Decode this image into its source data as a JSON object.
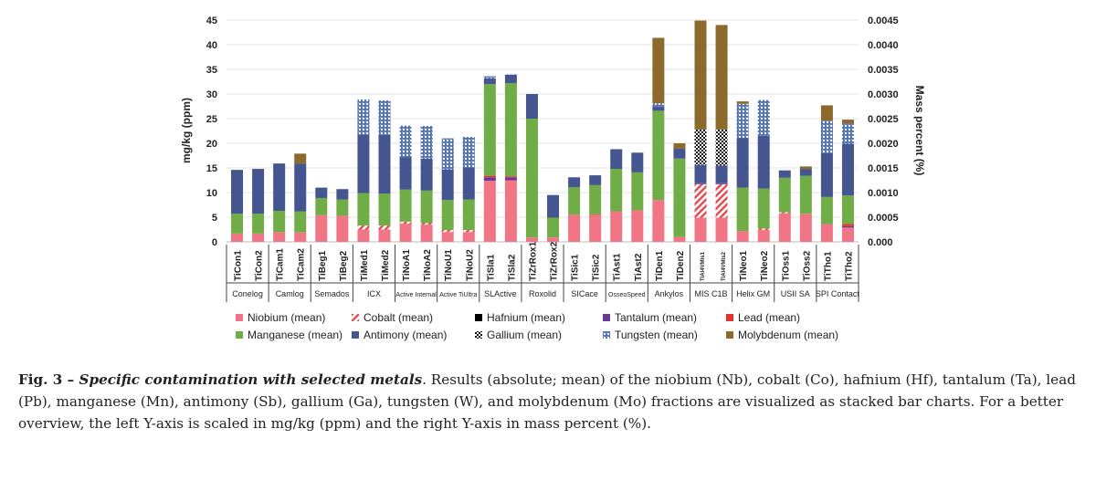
{
  "chart_data": {
    "type": "bar",
    "stacked": true,
    "ylabel": "mg/kg (ppm)",
    "y2label": "Mass percent (%)",
    "ylim": [
      0,
      45
    ],
    "y2lim": [
      0,
      0.0045
    ],
    "yticks": [
      "0",
      "5",
      "10",
      "15",
      "20",
      "25",
      "30",
      "35",
      "40",
      "45"
    ],
    "y2ticks": [
      "0.000",
      "0.0005",
      "0.0010",
      "0.0015",
      "0.0020",
      "0.0025",
      "0.0030",
      "0.0035",
      "0.0040",
      "0.0045"
    ],
    "grid": true,
    "legend_position": "bottom",
    "categories": [
      "TiCon1",
      "TiCon2",
      "TiCam1",
      "TiCam2",
      "TiBeg1",
      "TiBeg2",
      "TiMed1",
      "TiMed2",
      "TiNoA1",
      "TiNoA2",
      "TiNoU1",
      "TiNoU2",
      "TiSla1",
      "TiSla2",
      "TiZrRox1",
      "TiZrRox2",
      "TiSic1",
      "TiSic2",
      "TiAst1",
      "TiAst2",
      "TiDen1",
      "TiDen2",
      "TiAl4VMis1",
      "TiAl4VMis2",
      "TiNeo1",
      "TiNeo2",
      "TiOss1",
      "TiOss2",
      "TiTho1",
      "TiTho2"
    ],
    "groups": [
      {
        "name": "Conelog",
        "size": 2
      },
      {
        "name": "Camlog",
        "size": 2
      },
      {
        "name": "Semados",
        "size": 2
      },
      {
        "name": "ICX",
        "size": 2
      },
      {
        "name": "Active Internal",
        "size": 2
      },
      {
        "name": "Active TiUltra",
        "size": 2
      },
      {
        "name": "SLActive",
        "size": 2
      },
      {
        "name": "Roxolid",
        "size": 2
      },
      {
        "name": "SICace",
        "size": 2
      },
      {
        "name": "OsseoSpeed",
        "size": 2
      },
      {
        "name": "Ankylos",
        "size": 2
      },
      {
        "name": "MIS C1B",
        "size": 2
      },
      {
        "name": "Helix GM",
        "size": 2
      },
      {
        "name": "USII SA",
        "size": 2
      },
      {
        "name": "SPI Contact",
        "size": 2
      }
    ],
    "series": [
      {
        "name": "Niobium (mean)",
        "color": "#f07585",
        "pattern": "solid",
        "values": [
          1.7,
          1.7,
          2.0,
          1.9,
          5.4,
          5.3,
          2.5,
          2.5,
          3.7,
          3.5,
          2.0,
          2.0,
          12.4,
          12.5,
          0.9,
          0.9,
          5.5,
          5.5,
          6.2,
          6.4,
          8.5,
          1.0,
          4.9,
          4.9,
          2.2,
          2.4,
          5.8,
          5.7,
          3.6,
          2.9
        ]
      },
      {
        "name": "Cobalt (mean)",
        "color": "#e8474f",
        "pattern": "stripes",
        "values": [
          0,
          0,
          0,
          0,
          0,
          0,
          0.8,
          0.8,
          0.4,
          0.3,
          0.4,
          0.4,
          0,
          0,
          0,
          0,
          0,
          0,
          0,
          0,
          0,
          0,
          6.8,
          6.8,
          0,
          0.3,
          0.2,
          0,
          0,
          0
        ]
      },
      {
        "name": "Hafnium (mean)",
        "color": "#000000",
        "pattern": "solid",
        "values": [
          0,
          0,
          0,
          0,
          0,
          0,
          0,
          0,
          0,
          0,
          0,
          0,
          0,
          0,
          0,
          0,
          0,
          0,
          0,
          0,
          0,
          0,
          0,
          0,
          0,
          0,
          0,
          0,
          0,
          0
        ]
      },
      {
        "name": "Tantalum (mean)",
        "color": "#6b3a96",
        "pattern": "solid",
        "values": [
          0,
          0,
          0,
          0,
          0,
          0,
          0,
          0,
          0,
          0,
          0,
          0,
          0.7,
          0.6,
          0,
          0,
          0,
          0,
          0,
          0,
          0,
          0,
          0.2,
          0.2,
          0,
          0,
          0,
          0,
          0,
          0.3
        ]
      },
      {
        "name": "Lead (mean)",
        "color": "#e8302f",
        "pattern": "solid",
        "values": [
          0,
          0,
          0,
          0,
          0,
          0,
          0,
          0,
          0,
          0,
          0,
          0,
          0.3,
          0.2,
          0,
          0,
          0,
          0.1,
          0,
          0,
          0,
          0,
          0,
          0,
          0,
          0,
          0,
          0,
          0,
          0.4
        ]
      },
      {
        "name": "Manganese (mean)",
        "color": "#70ad47",
        "pattern": "solid",
        "values": [
          4.0,
          4.0,
          4.3,
          4.3,
          3.5,
          3.3,
          6.6,
          6.5,
          6.5,
          6.6,
          6.1,
          6.2,
          18.6,
          18.9,
          24.1,
          4.0,
          5.6,
          5.9,
          8.6,
          7.7,
          18.1,
          15.9,
          0,
          0,
          8.8,
          8.1,
          7.0,
          7.7,
          5.5,
          5.8
        ]
      },
      {
        "name": "Antimony (mean)",
        "color": "#44558f",
        "pattern": "solid",
        "values": [
          8.9,
          9.1,
          9.6,
          9.7,
          2.1,
          2.1,
          11.9,
          11.9,
          6.6,
          6.5,
          6.2,
          6.4,
          1.2,
          1.7,
          5.0,
          4.6,
          2.0,
          2.0,
          4.0,
          4.0,
          0.8,
          2.0,
          3.7,
          3.6,
          10.1,
          10.7,
          1.5,
          1.4,
          8.9,
          10.5
        ]
      },
      {
        "name": "Gallium (mean)",
        "color": "#000000",
        "pattern": "checker",
        "values": [
          0,
          0,
          0,
          0,
          0,
          0,
          0,
          0,
          0,
          0,
          0,
          0,
          0,
          0,
          0,
          0,
          0,
          0,
          0,
          0,
          0,
          0,
          7.2,
          7.3,
          0,
          0,
          0,
          0,
          0,
          0
        ]
      },
      {
        "name": "Tungsten (mean)",
        "color": "#4a6bb5",
        "pattern": "dots",
        "values": [
          0,
          0,
          0,
          0,
          0,
          0,
          7.1,
          7.0,
          6.4,
          6.6,
          6.3,
          6.3,
          0.4,
          0.1,
          0,
          0,
          0,
          0,
          0,
          0,
          0.7,
          0,
          0,
          0,
          6.9,
          7.3,
          0,
          0,
          6.6,
          4.1
        ]
      },
      {
        "name": "Molybdenum (mean)",
        "color": "#8b6a2c",
        "pattern": "solid",
        "values": [
          0,
          0,
          0,
          2.0,
          0,
          0,
          0,
          0,
          0,
          0,
          0,
          0,
          0,
          0,
          0,
          0,
          0,
          0,
          0,
          0,
          13.3,
          1.1,
          22.1,
          21.2,
          0.5,
          0,
          0,
          0.5,
          3.1,
          0.8
        ]
      }
    ]
  },
  "caption": {
    "label": "Fig. 3 – ",
    "title": "Specific contamination with selected metals",
    "body": ". Results (absolute; mean) of the niobium (Nb), cobalt (Co), hafnium (Hf), tantalum (Ta), lead (Pb), manganese (Mn), antimony (Sb), gallium (Ga), tungsten (W), and molybdenum (Mo) fractions are visualized as stacked bar charts. For a better overview, the left Y-axis is scaled in mg/kg (ppm) and the right Y-axis in mass percent (%)."
  }
}
